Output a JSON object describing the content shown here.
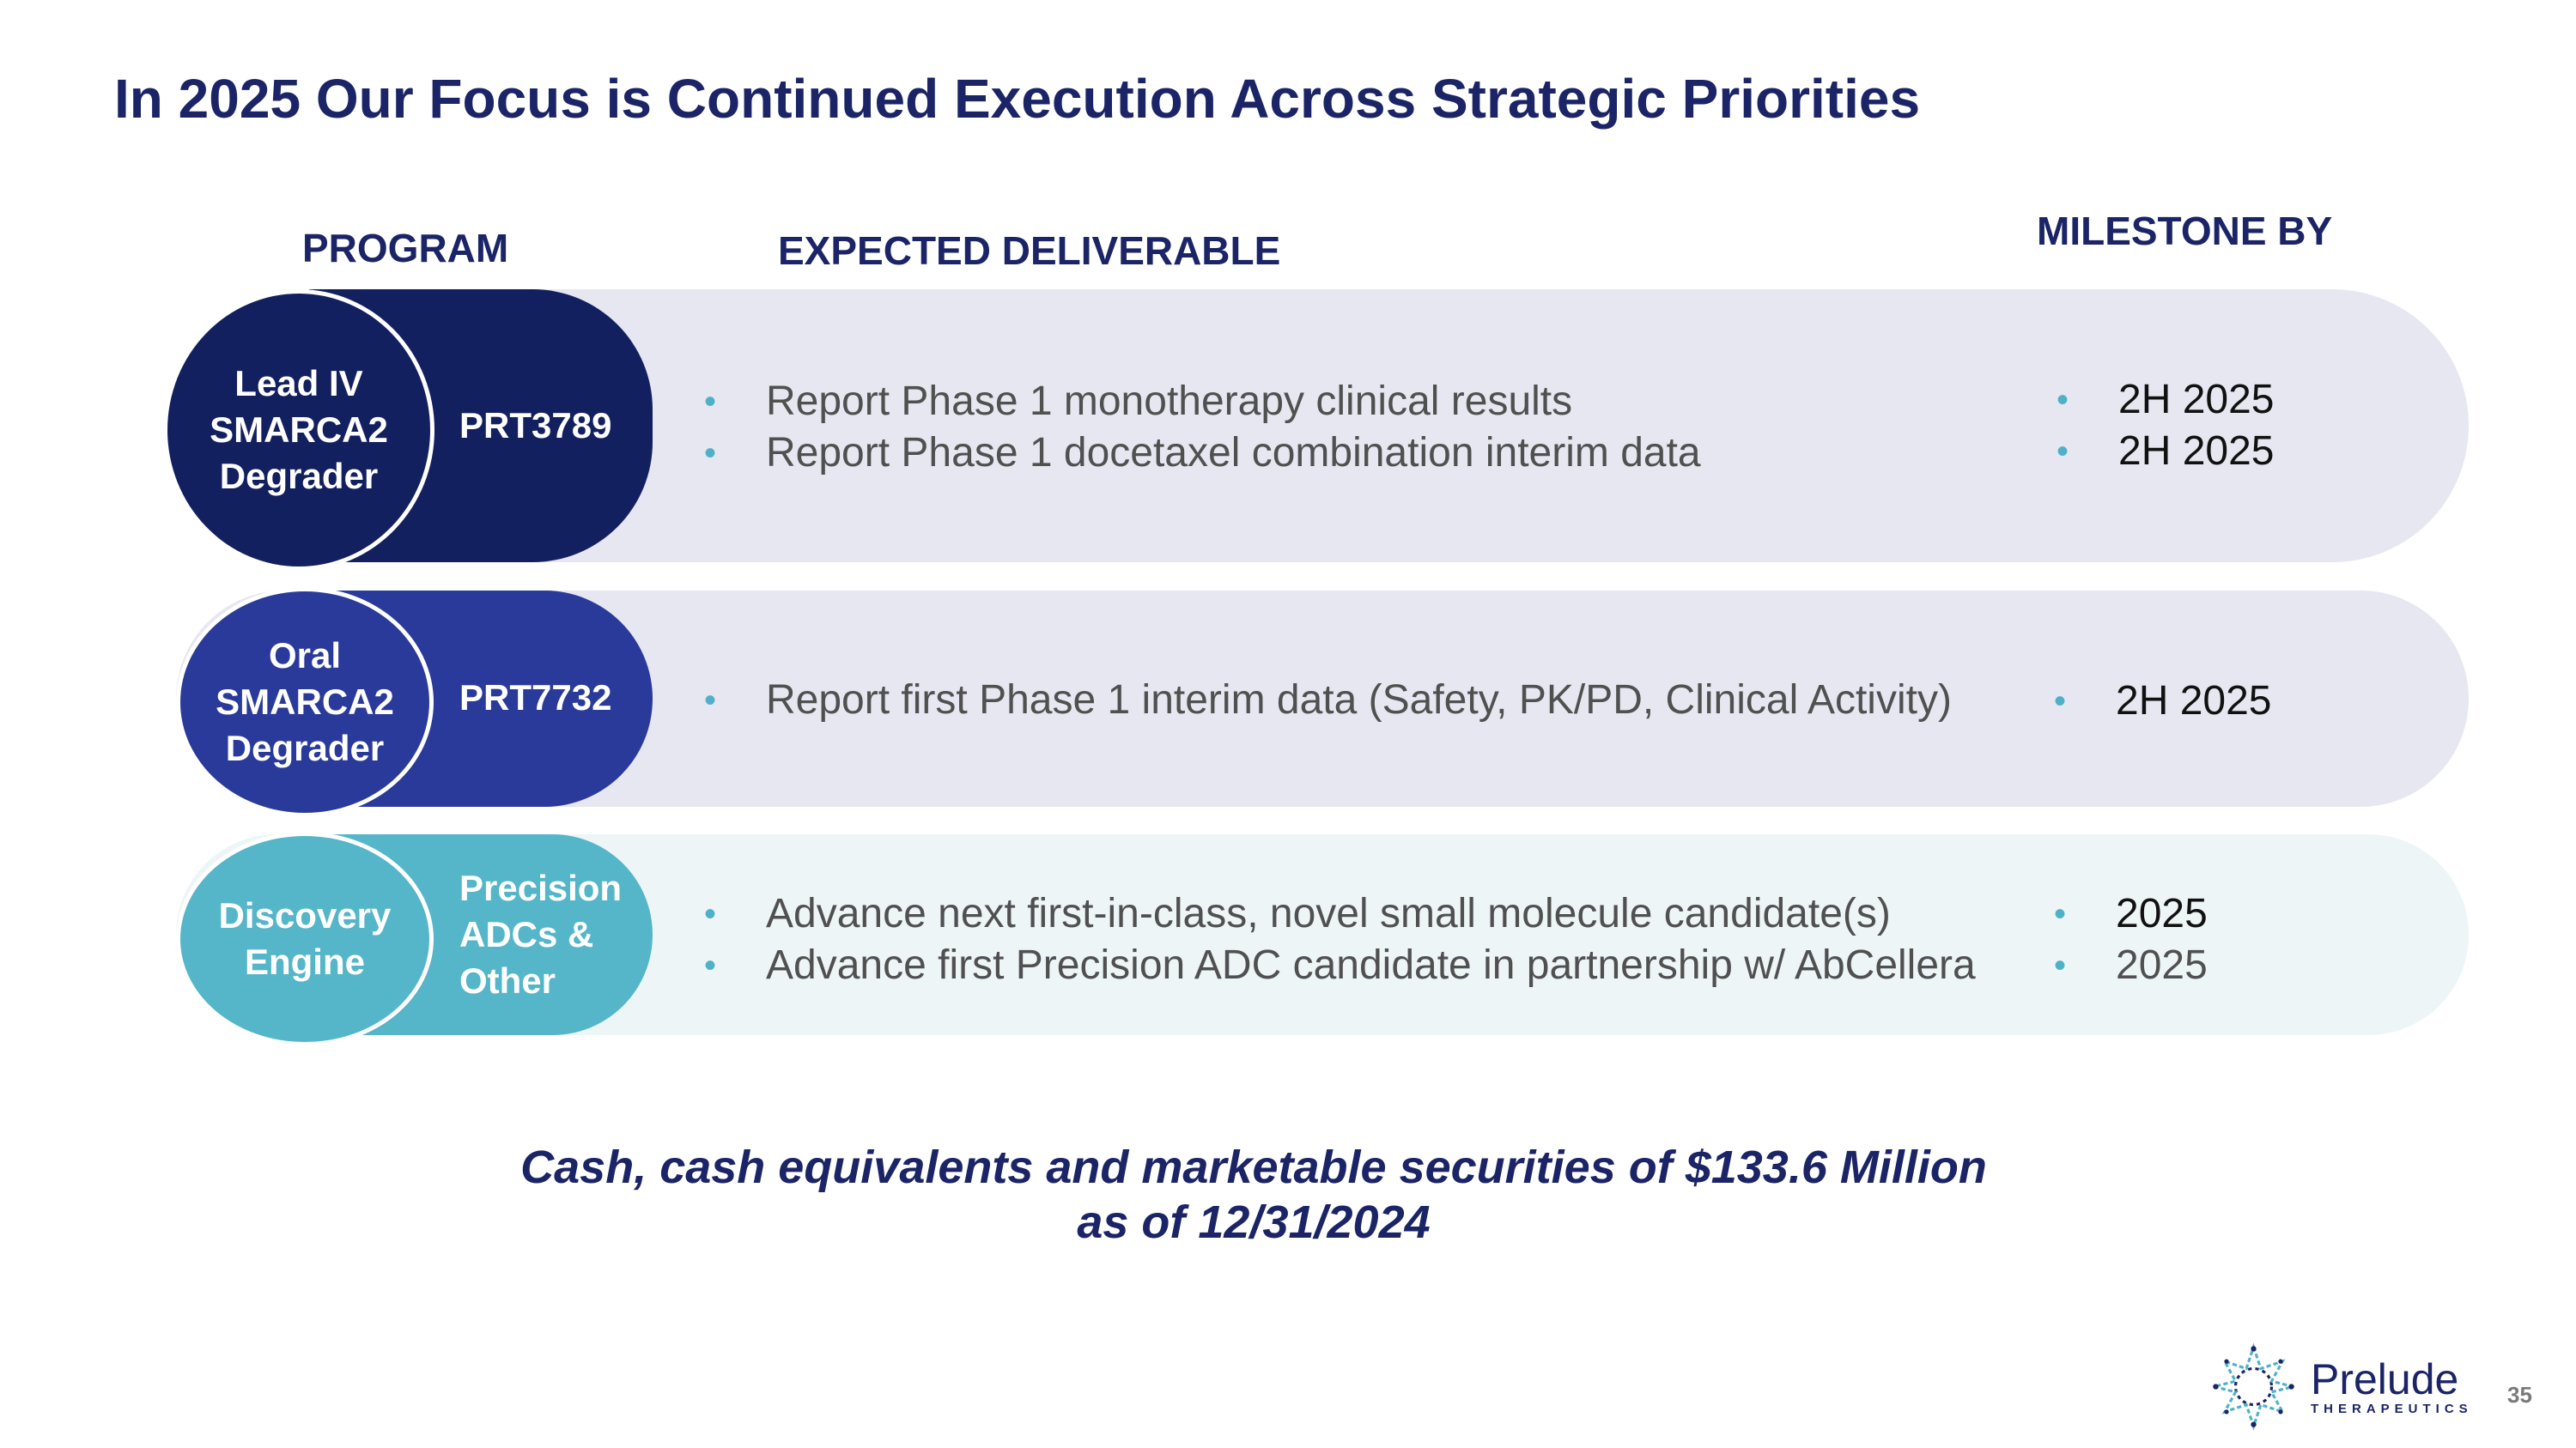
{
  "title": "In 2025 Our Focus is Continued Execution Across Strategic Priorities",
  "headers": {
    "program": "PROGRAM",
    "deliverable": "EXPECTED DELIVERABLE",
    "milestone": "MILESTONE BY"
  },
  "rows": [
    {
      "category": [
        "Lead IV",
        "SMARCA2",
        "Degrader"
      ],
      "program": [
        "PRT3789"
      ],
      "deliverables": [
        "Report Phase 1 monotherapy clinical results",
        "Report Phase 1 docetaxel combination interim data"
      ],
      "milestones": [
        "2H 2025",
        "2H 2025"
      ]
    },
    {
      "category": [
        "Oral",
        "SMARCA2",
        "Degrader"
      ],
      "program": [
        "PRT7732"
      ],
      "deliverables": [
        "Report first Phase 1 interim data (Safety, PK/PD, Clinical Activity)"
      ],
      "milestones": [
        "2H 2025"
      ]
    },
    {
      "category": [
        "Discovery",
        "Engine"
      ],
      "program": [
        "Precision",
        "ADCs &",
        "Other"
      ],
      "deliverables": [
        "Advance next first-in-class, novel small molecule candidate(s)",
        "Advance first Precision ADC candidate in partnership w/ AbCellera"
      ],
      "milestones": [
        "2025",
        "2025"
      ]
    }
  ],
  "cash": [
    "Cash, cash equivalents and marketable securities of $133.6 Million",
    "as of 12/31/2024"
  ],
  "logo": {
    "name": "Prelude",
    "sub": "THERAPEUTICS",
    "icon": "prelude-star-icon"
  },
  "page_number": "35",
  "colors": {
    "navy": "#13205f",
    "royal": "#2a3a9a",
    "teal": "#54b6c8",
    "row1_bg": "#e6e7f0",
    "row2_bg": "#e6e7f0",
    "row3_bg": "#edf5f7"
  }
}
